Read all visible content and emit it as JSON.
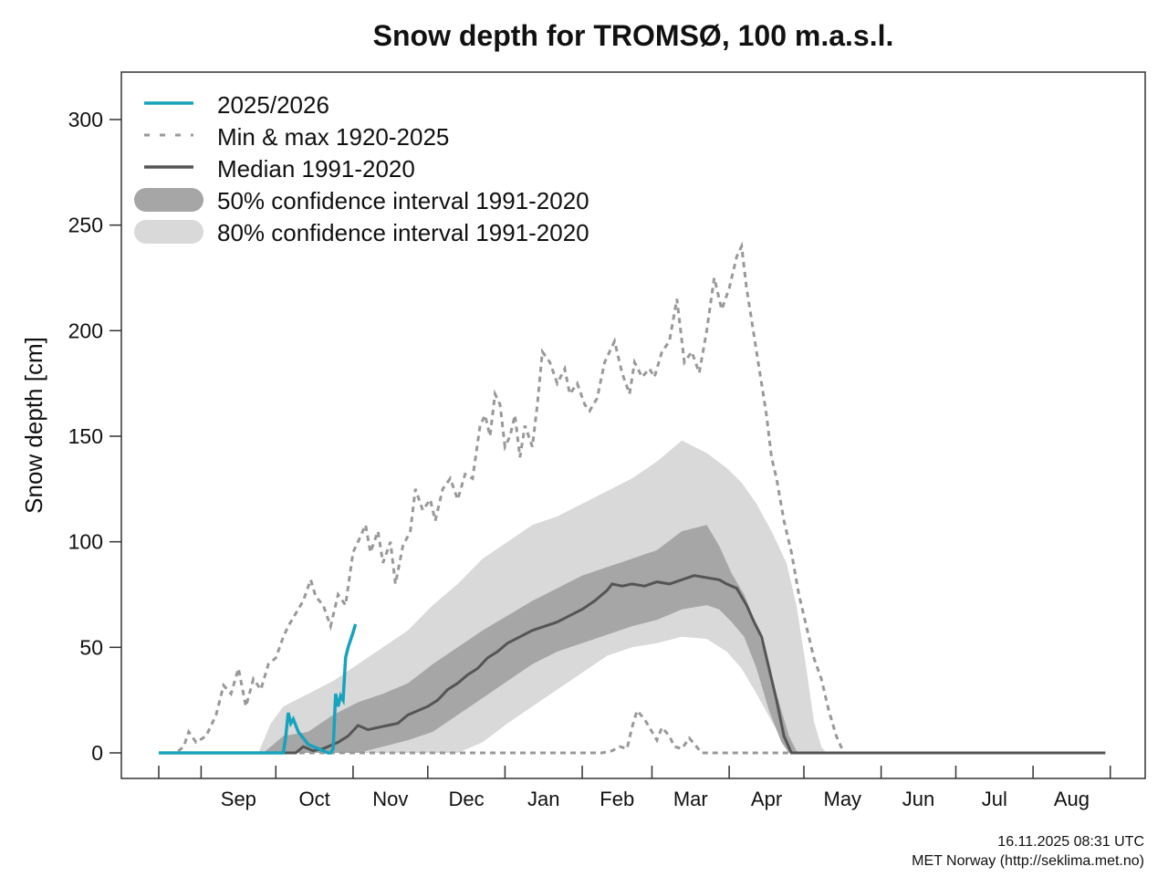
{
  "chart_data": {
    "type": "line",
    "title": "Snow depth for TROMSØ, 100 m.a.s.l.",
    "ylabel": "Snow depth [cm]",
    "xlabel": "",
    "ylim": [
      -12,
      325
    ],
    "yticks": [
      0,
      50,
      100,
      150,
      200,
      250,
      300
    ],
    "x_unit": "days from 15 Aug",
    "xlim": [
      0,
      381
    ],
    "months": [
      {
        "label": "Sep",
        "start": 17,
        "end": 47
      },
      {
        "label": "Oct",
        "start": 47,
        "end": 78
      },
      {
        "label": "Nov",
        "start": 78,
        "end": 108
      },
      {
        "label": "Dec",
        "start": 108,
        "end": 139
      },
      {
        "label": "Jan",
        "start": 139,
        "end": 170
      },
      {
        "label": "Feb",
        "start": 170,
        "end": 198
      },
      {
        "label": "Mar",
        "start": 198,
        "end": 229
      },
      {
        "label": "Apr",
        "start": 229,
        "end": 259
      },
      {
        "label": "May",
        "start": 259,
        "end": 290
      },
      {
        "label": "Jun",
        "start": 290,
        "end": 320
      },
      {
        "label": "Jul",
        "start": 320,
        "end": 351
      },
      {
        "label": "Aug",
        "start": 351,
        "end": 382
      }
    ],
    "legend": {
      "placement": "top-left",
      "entries": [
        "2025/2026",
        "Min & max 1920-2025",
        "Median 1991-2020",
        "50% confidence interval 1991-2020",
        "80% confidence interval 1991-2020"
      ]
    },
    "series": [
      {
        "name": "2025/2026",
        "color": "#17a3bd",
        "x": [
          0,
          50,
          51,
          52,
          53,
          54,
          56,
          58,
          60,
          62,
          64,
          66,
          68,
          69,
          70,
          71,
          72,
          73,
          74,
          75,
          76,
          78,
          79
        ],
        "values": [
          0,
          0,
          8,
          19,
          14,
          16,
          10,
          7,
          4,
          3,
          2,
          1,
          0,
          0,
          2,
          28,
          22,
          27,
          25,
          45,
          50,
          57,
          61
        ]
      },
      {
        "name": "Max 1920-2025",
        "color": "#999999",
        "x": [
          0,
          7,
          10,
          12,
          15,
          19,
          23,
          26,
          29,
          32,
          35,
          38,
          41,
          44,
          47,
          50,
          52,
          55,
          58,
          61,
          63,
          66,
          69,
          72,
          75,
          78,
          80,
          83,
          85,
          88,
          90,
          93,
          95,
          98,
          101,
          103,
          106,
          109,
          111,
          114,
          117,
          120,
          123,
          126,
          129,
          131,
          133,
          135,
          137,
          139,
          141,
          143,
          145,
          147,
          150,
          152,
          154,
          157,
          160,
          163,
          165,
          168,
          171,
          173,
          176,
          179,
          183,
          186,
          189,
          191,
          194,
          197,
          199,
          202,
          205,
          208,
          211,
          214,
          217,
          220,
          223,
          226,
          229,
          232,
          234,
          236,
          238,
          240,
          242,
          244,
          246,
          248,
          251,
          254,
          257,
          260,
          263,
          266,
          269,
          272,
          275,
          278,
          280,
          283,
          286,
          289,
          292,
          295,
          380
        ],
        "values": [
          0,
          0,
          3,
          10,
          5,
          8,
          18,
          32,
          28,
          40,
          22,
          35,
          30,
          42,
          45,
          55,
          60,
          66,
          72,
          82,
          74,
          70,
          60,
          75,
          70,
          95,
          100,
          108,
          95,
          105,
          90,
          100,
          80,
          98,
          105,
          125,
          115,
          120,
          110,
          125,
          130,
          120,
          132,
          130,
          155,
          160,
          150,
          170,
          165,
          145,
          150,
          160,
          140,
          155,
          145,
          165,
          190,
          185,
          175,
          182,
          170,
          175,
          165,
          162,
          168,
          185,
          195,
          180,
          170,
          185,
          178,
          182,
          178,
          190,
          195,
          215,
          185,
          190,
          180,
          200,
          225,
          210,
          220,
          235,
          240,
          220,
          205,
          190,
          175,
          160,
          140,
          130,
          110,
          95,
          75,
          60,
          45,
          35,
          20,
          8,
          0,
          0,
          0,
          0,
          0,
          0,
          0,
          0,
          0
        ]
      },
      {
        "name": "Min 1920-2025",
        "color": "#999999",
        "x": [
          0,
          140,
          160,
          170,
          175,
          178,
          182,
          185,
          188,
          190,
          192,
          195,
          198,
          200,
          202,
          205,
          207,
          210,
          213,
          218,
          225,
          380
        ],
        "values": [
          0,
          0,
          0,
          0,
          0,
          0,
          1,
          3,
          2,
          12,
          20,
          16,
          10,
          6,
          12,
          8,
          3,
          2,
          7,
          0,
          0,
          0
        ]
      },
      {
        "name": "Median 1991-2020",
        "color": "#555555",
        "x": [
          0,
          45,
          55,
          58,
          62,
          66,
          72,
          76,
          80,
          84,
          88,
          92,
          96,
          100,
          104,
          108,
          112,
          116,
          120,
          124,
          128,
          132,
          136,
          140,
          145,
          150,
          155,
          160,
          165,
          170,
          175,
          180,
          182,
          186,
          190,
          195,
          200,
          205,
          210,
          215,
          220,
          225,
          228,
          232,
          236,
          239,
          242,
          245,
          248,
          251,
          254,
          257,
          260,
          380
        ],
        "values": [
          0,
          0,
          0,
          3,
          1,
          2,
          5,
          8,
          13,
          11,
          12,
          13,
          14,
          18,
          20,
          22,
          25,
          30,
          33,
          37,
          40,
          45,
          48,
          52,
          55,
          58,
          60,
          62,
          65,
          68,
          72,
          77,
          80,
          79,
          80,
          79,
          81,
          80,
          82,
          84,
          83,
          82,
          80,
          78,
          70,
          62,
          55,
          40,
          25,
          8,
          0,
          0,
          0,
          0
        ]
      },
      {
        "name": "50% confidence interval 1991-2020",
        "color": "#a6a6a6",
        "x": [
          0,
          42,
          50,
          60,
          70,
          80,
          90,
          100,
          110,
          120,
          130,
          140,
          150,
          160,
          170,
          180,
          190,
          200,
          210,
          220,
          225,
          230,
          235,
          240,
          245,
          250,
          253,
          256,
          258,
          260,
          380
        ],
        "upper": [
          0,
          0,
          8,
          10,
          18,
          24,
          28,
          33,
          42,
          50,
          58,
          65,
          72,
          78,
          84,
          88,
          92,
          96,
          105,
          108,
          98,
          85,
          75,
          60,
          40,
          20,
          8,
          1,
          0,
          0,
          0
        ],
        "lower": [
          0,
          0,
          0,
          0,
          0,
          0,
          3,
          6,
          10,
          18,
          26,
          34,
          42,
          48,
          52,
          56,
          60,
          63,
          68,
          70,
          68,
          62,
          55,
          40,
          20,
          5,
          0,
          0,
          0,
          0,
          0
        ]
      },
      {
        "name": "80% confidence interval 1991-2020",
        "color": "#d9d9d9",
        "x": [
          0,
          40,
          45,
          50,
          60,
          70,
          80,
          90,
          100,
          110,
          120,
          130,
          140,
          150,
          160,
          170,
          180,
          190,
          200,
          210,
          220,
          228,
          234,
          240,
          246,
          252,
          256,
          260,
          263,
          266,
          268,
          270,
          380
        ],
        "upper": [
          0,
          0,
          14,
          22,
          28,
          34,
          42,
          50,
          58,
          70,
          80,
          92,
          100,
          108,
          112,
          118,
          124,
          130,
          138,
          148,
          142,
          135,
          128,
          118,
          105,
          90,
          70,
          40,
          15,
          3,
          0,
          0,
          0
        ],
        "lower": [
          0,
          0,
          0,
          0,
          0,
          0,
          0,
          0,
          0,
          0,
          0,
          5,
          14,
          22,
          30,
          38,
          46,
          50,
          52,
          55,
          54,
          48,
          40,
          28,
          15,
          3,
          0,
          0,
          0,
          0,
          0,
          0,
          0
        ]
      }
    ],
    "grid": false
  },
  "footer": {
    "timestamp": "16.11.2025 08:31 UTC",
    "source": "MET Norway (http://seklima.met.no)"
  }
}
